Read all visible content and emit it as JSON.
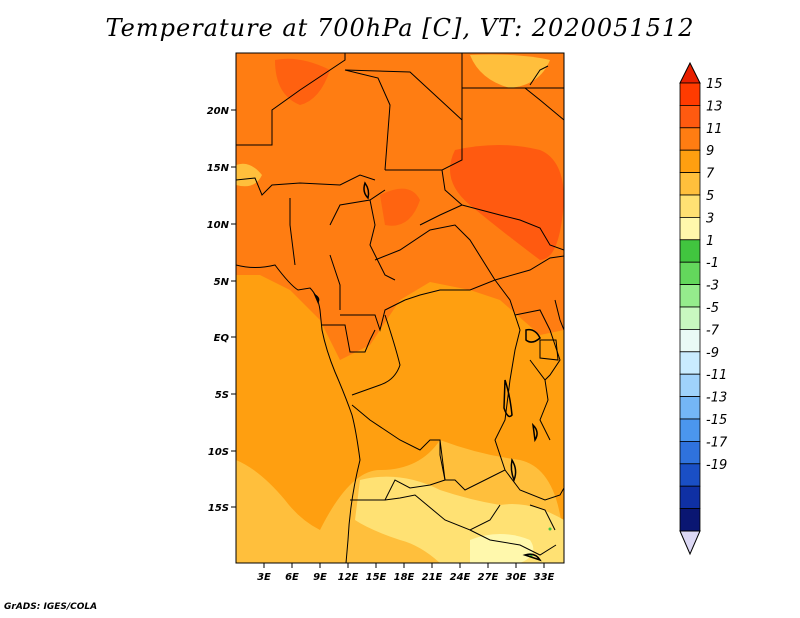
{
  "title": "Temperature at 700hPa [C], VT: 2020051512",
  "credit": "GrADS: IGES/COLA",
  "lat_labels": [
    "20N",
    "15N",
    "10N",
    "5N",
    "EQ",
    "5S",
    "10S",
    "15S"
  ],
  "lon_labels": [
    "3E",
    "6E",
    "9E",
    "12E",
    "15E",
    "18E",
    "21E",
    "24E",
    "27E",
    "30E",
    "33E"
  ],
  "colorbar": {
    "labels": [
      "15",
      "13",
      "11",
      "9",
      "7",
      "5",
      "3",
      "1",
      "-1",
      "-3",
      "-5",
      "-7",
      "-9",
      "-11",
      "-13",
      "-15",
      "-17",
      "-19"
    ],
    "colors": [
      "#ff3b00",
      "#ff5a10",
      "#ff7d12",
      "#ff9f10",
      "#ffbf3c",
      "#ffe173",
      "#fff8ac",
      "#41c53f",
      "#63d75c",
      "#95ec8c",
      "#c8f8c0",
      "#e9faf6",
      "#c9ecff",
      "#9fd2fb",
      "#74b6f6",
      "#4b96ee",
      "#2f72dd",
      "#1a4fc5",
      "#0f30a4",
      "#0a1672"
    ],
    "top_arrow_color": "#e82000",
    "bottom_arrow_color": "#dcd8f5"
  }
}
